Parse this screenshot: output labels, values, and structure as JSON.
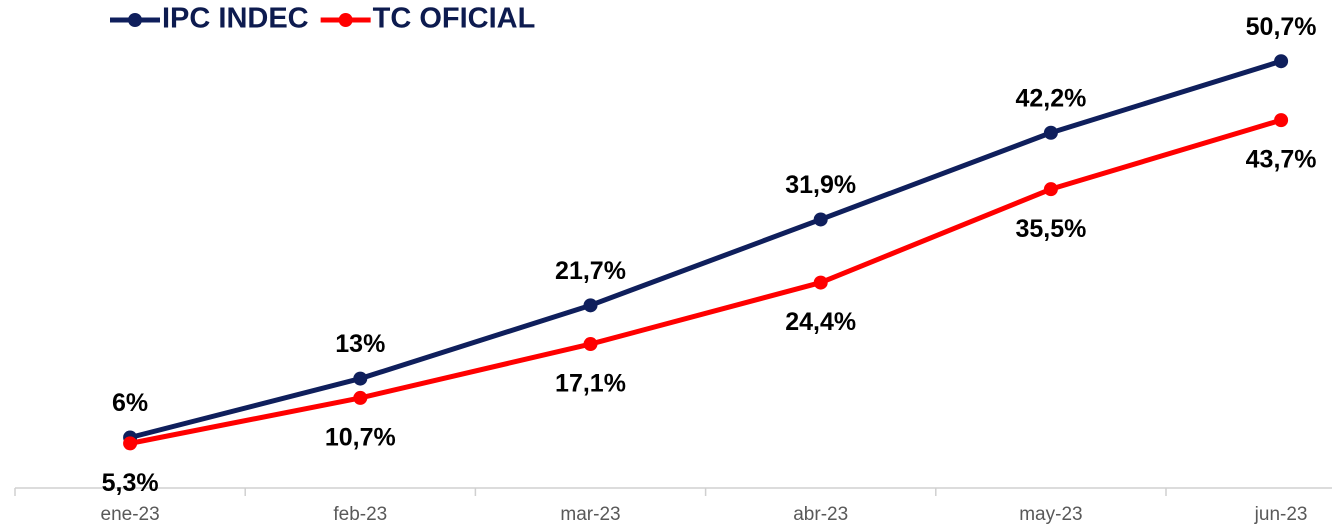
{
  "chart_data": {
    "type": "line",
    "categories": [
      "ene-23",
      "feb-23",
      "mar-23",
      "abr-23",
      "may-23",
      "jun-23"
    ],
    "series": [
      {
        "name": "IPC INDEC",
        "color": "#0f1f5c",
        "values": [
          6,
          13,
          21.7,
          31.9,
          42.2,
          50.7
        ],
        "value_labels": [
          "6%",
          "13%",
          "21,7%",
          "31,9%",
          "42,2%",
          "50,7%"
        ]
      },
      {
        "name": "TC OFICIAL",
        "color": "#ff0000",
        "values": [
          5.3,
          10.7,
          17.1,
          24.4,
          35.5,
          43.7
        ],
        "value_labels": [
          "5,3%",
          "10,7%",
          "17,1%",
          "24,4%",
          "35,5%",
          "43,7%"
        ]
      }
    ],
    "ylim": [
      0,
      55
    ],
    "legend": "top-left"
  }
}
